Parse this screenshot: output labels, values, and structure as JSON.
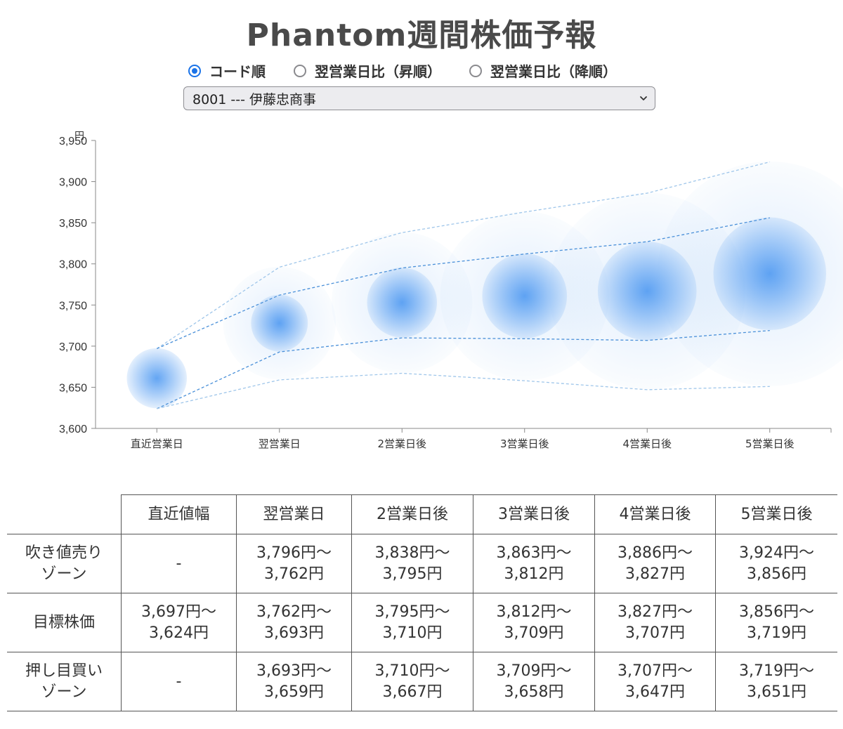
{
  "page": {
    "title": "Phantom週間株価予報"
  },
  "sort_options": [
    {
      "label": "コード順",
      "selected": true
    },
    {
      "label": "翌営業日比（昇順）",
      "selected": false
    },
    {
      "label": "翌営業日比（降順）",
      "selected": false
    }
  ],
  "stock_select": {
    "value": "8001 --- 伊藤忠商事"
  },
  "chart_data": {
    "type": "scatter",
    "title": "",
    "ylabel": "円",
    "ylim": [
      3600,
      3950
    ],
    "yticks": [
      "3,600",
      "3,650",
      "3,700",
      "3,750",
      "3,800",
      "3,850",
      "3,900",
      "3,950"
    ],
    "categories": [
      "直近営業日",
      "翌営業日",
      "2営業日後",
      "3営業日後",
      "4営業日後",
      "5営業日後"
    ],
    "center": [
      3661,
      3728,
      3753,
      3761,
      3767,
      3788
    ],
    "series": [
      {
        "values": [
          3697,
          3796,
          3838,
          3863,
          3886,
          3924
        ]
      },
      {
        "values": [
          3697,
          3762,
          3795,
          3812,
          3827,
          3856
        ]
      },
      {
        "values": [
          3624,
          3693,
          3710,
          3709,
          3707,
          3719
        ]
      },
      {
        "values": [
          3624,
          3659,
          3667,
          3658,
          3647,
          3651
        ]
      }
    ],
    "colors": {
      "bubble": "#3d8ff0",
      "line_inner": "#4a90d9",
      "line_outer": "#9fc6ea"
    }
  },
  "table": {
    "headers": [
      "",
      "直近値幅",
      "翌営業日",
      "2営業日後",
      "3営業日後",
      "4営業日後",
      "5営業日後"
    ],
    "rows": [
      {
        "label": [
          "吹き値売り",
          "ゾーン"
        ],
        "cells": [
          [
            "-"
          ],
          [
            "3,796円〜",
            "3,762円"
          ],
          [
            "3,838円〜",
            "3,795円"
          ],
          [
            "3,863円〜",
            "3,812円"
          ],
          [
            "3,886円〜",
            "3,827円"
          ],
          [
            "3,924円〜",
            "3,856円"
          ]
        ]
      },
      {
        "label": [
          "目標株価"
        ],
        "cells": [
          [
            "3,697円〜",
            "3,624円"
          ],
          [
            "3,762円〜",
            "3,693円"
          ],
          [
            "3,795円〜",
            "3,710円"
          ],
          [
            "3,812円〜",
            "3,709円"
          ],
          [
            "3,827円〜",
            "3,707円"
          ],
          [
            "3,856円〜",
            "3,719円"
          ]
        ]
      },
      {
        "label": [
          "押し目買い",
          "ゾーン"
        ],
        "cells": [
          [
            "-"
          ],
          [
            "3,693円〜",
            "3,659円"
          ],
          [
            "3,710円〜",
            "3,667円"
          ],
          [
            "3,709円〜",
            "3,658円"
          ],
          [
            "3,707円〜",
            "3,647円"
          ],
          [
            "3,719円〜",
            "3,651円"
          ]
        ]
      }
    ]
  }
}
